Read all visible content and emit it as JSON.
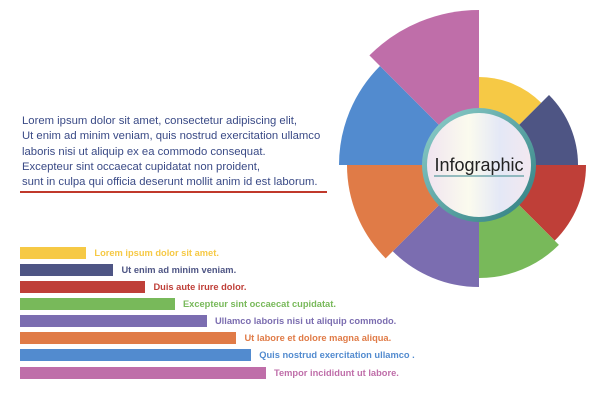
{
  "paragraph": [
    "Lorem ipsum dolor sit amet, consectetur adipiscing elit,",
    "Ut enim ad minim veniam, quis nostrud exercitation ullamco",
    "laboris nisi ut aliquip ex ea commodo consequat.",
    "Excepteur sint occaecat cupidatat non proident,",
    "sunt in culpa qui officia deserunt mollit anim id est laborum."
  ],
  "center_label": "Infographic",
  "accent_rule_color": "#c0392b",
  "items": [
    {
      "label": "Lorem ipsum dolor sit amet.",
      "color": "#f6c945",
      "value": 27
    },
    {
      "label": "Ut enim ad minim veniam.",
      "color": "#4e5584",
      "value": 38
    },
    {
      "label": "Duis aute irure dolor.",
      "color": "#bf3f38",
      "value": 51
    },
    {
      "label": "Excepteur sint occaecat cupidatat.",
      "color": "#78b95a",
      "value": 63
    },
    {
      "label": "Ullamco laboris nisi ut aliquip commodo.",
      "color": "#7b6db0",
      "value": 76
    },
    {
      "label": "Ut labore et dolore magna aliqua.",
      "color": "#e07b47",
      "value": 88
    },
    {
      "label": "Quis nostrud exercitation ullamco .",
      "color": "#528bcf",
      "value": 94
    },
    {
      "label": "Tempor incididunt ut labore.",
      "color": "#bf6ea9",
      "value": 100
    }
  ]
}
